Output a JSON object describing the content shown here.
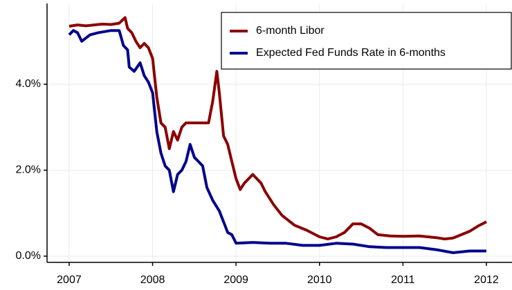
{
  "chart_data": {
    "type": "line",
    "xlim": [
      2006.735,
      2012.307
    ],
    "ylim": [
      -0.145,
      5.88
    ],
    "xticks": [
      2007,
      2008,
      2009,
      2010,
      2011,
      2012
    ],
    "yticks": [
      {
        "value": 0,
        "label": "0.0%"
      },
      {
        "value": 2,
        "label": "2.0%"
      },
      {
        "value": 4,
        "label": "4.0%"
      }
    ],
    "grid": true,
    "legend": "upper right",
    "series": [
      {
        "name": "6-month Libor",
        "color": "#8b0000",
        "x": [
          2007.0,
          2007.1,
          2007.2,
          2007.3,
          2007.4,
          2007.5,
          2007.6,
          2007.67,
          2007.7,
          2007.75,
          2007.8,
          2007.85,
          2007.9,
          2007.95,
          2008.0,
          2008.05,
          2008.1,
          2008.15,
          2008.2,
          2008.25,
          2008.3,
          2008.35,
          2008.4,
          2008.5,
          2008.6,
          2008.67,
          2008.72,
          2008.77,
          2008.8,
          2008.85,
          2008.9,
          2008.95,
          2009.0,
          2009.05,
          2009.1,
          2009.2,
          2009.25,
          2009.3,
          2009.35,
          2009.45,
          2009.55,
          2009.7,
          2009.85,
          2010.0,
          2010.1,
          2010.2,
          2010.3,
          2010.4,
          2010.5,
          2010.6,
          2010.7,
          2010.85,
          2011.0,
          2011.2,
          2011.4,
          2011.5,
          2011.6,
          2011.7,
          2011.8,
          2011.9,
          2012.0
        ],
        "values": [
          5.35,
          5.38,
          5.36,
          5.38,
          5.4,
          5.39,
          5.42,
          5.55,
          5.3,
          5.2,
          5.0,
          4.85,
          4.95,
          4.85,
          4.6,
          3.7,
          3.1,
          3.0,
          2.5,
          2.9,
          2.7,
          3.0,
          3.1,
          3.1,
          3.1,
          3.1,
          3.6,
          4.3,
          3.8,
          2.8,
          2.6,
          2.2,
          1.8,
          1.55,
          1.7,
          1.9,
          1.8,
          1.7,
          1.5,
          1.2,
          0.95,
          0.72,
          0.6,
          0.45,
          0.4,
          0.45,
          0.55,
          0.75,
          0.75,
          0.65,
          0.5,
          0.47,
          0.46,
          0.47,
          0.43,
          0.4,
          0.42,
          0.5,
          0.58,
          0.7,
          0.8
        ]
      },
      {
        "name": "Expected Fed Funds Rate in 6-months",
        "color": "#00008b",
        "x": [
          2007.0,
          2007.05,
          2007.1,
          2007.15,
          2007.25,
          2007.35,
          2007.5,
          2007.6,
          2007.65,
          2007.7,
          2007.72,
          2007.78,
          2007.85,
          2007.9,
          2007.95,
          2008.0,
          2008.05,
          2008.1,
          2008.15,
          2008.2,
          2008.25,
          2008.3,
          2008.35,
          2008.4,
          2008.45,
          2008.5,
          2008.55,
          2008.6,
          2008.65,
          2008.72,
          2008.8,
          2008.85,
          2008.9,
          2008.95,
          2009.0,
          2009.2,
          2009.4,
          2009.6,
          2009.8,
          2010.0,
          2010.2,
          2010.4,
          2010.6,
          2010.8,
          2011.0,
          2011.2,
          2011.4,
          2011.6,
          2011.8,
          2012.0
        ],
        "values": [
          5.15,
          5.25,
          5.2,
          5.0,
          5.15,
          5.2,
          5.25,
          5.25,
          4.9,
          4.8,
          4.4,
          4.3,
          4.5,
          4.2,
          4.05,
          3.8,
          2.9,
          2.4,
          2.1,
          2.0,
          1.5,
          1.9,
          2.0,
          2.2,
          2.6,
          2.3,
          2.2,
          2.1,
          1.6,
          1.3,
          1.05,
          0.8,
          0.55,
          0.5,
          0.3,
          0.32,
          0.3,
          0.3,
          0.25,
          0.25,
          0.3,
          0.28,
          0.22,
          0.2,
          0.2,
          0.2,
          0.15,
          0.08,
          0.12,
          0.12
        ]
      }
    ]
  }
}
